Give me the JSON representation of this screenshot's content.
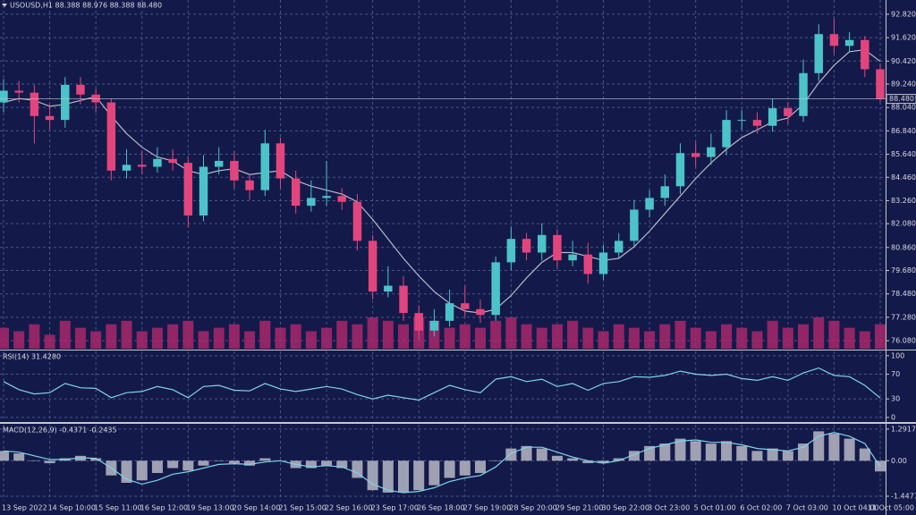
{
  "chart_data": [
    {
      "type": "candlestick",
      "title": "USOUSD,H1  88.388 88.976 88.388 88.480",
      "categories": [
        "13 Sep 2022",
        null,
        null,
        "14 Sep 10:00",
        null,
        null,
        "15 Sep 11:00",
        null,
        null,
        "16 Sep 12:00",
        null,
        null,
        "19 Sep 13:00",
        null,
        null,
        "20 Sep 14:00",
        null,
        null,
        "21 Sep 15:00",
        null,
        null,
        "22 Sep 16:00",
        null,
        null,
        "23 Sep 17:00",
        null,
        null,
        "26 Sep 18:00",
        null,
        null,
        "27 Sep 19:00",
        null,
        null,
        "28 Sep 20:00",
        null,
        null,
        "29 Sep 21:00",
        null,
        null,
        "30 Sep 22:00",
        null,
        null,
        "3 Oct 23:00",
        null,
        null,
        "5 Oct 01:00",
        null,
        null,
        "6 Oct 02:00",
        null,
        null,
        "7 Oct 03:00",
        null,
        null,
        "10 Oct 04:00",
        null,
        null,
        "11 Oct 05:00"
      ],
      "open": [
        88.3,
        88.9,
        88.8,
        87.6,
        87.4,
        89.2,
        88.7,
        88.3,
        84.8,
        85.1,
        85.0,
        85.4,
        85.2,
        82.5,
        85.0,
        85.3,
        84.3,
        83.8,
        86.2,
        84.4,
        83.0,
        83.4,
        83.5,
        83.2,
        81.2,
        78.6,
        78.9,
        77.5,
        76.6,
        77.1,
        78.0,
        77.7,
        77.4,
        80.1,
        81.3,
        80.6,
        81.5,
        80.2,
        80.5,
        79.5,
        80.6,
        81.2,
        82.8,
        83.4,
        84.0,
        85.7,
        85.5,
        86.0,
        87.4,
        87.4,
        87.1,
        88.0,
        87.6,
        89.8,
        91.8,
        91.2,
        91.5,
        90.0
      ],
      "high": [
        89.5,
        89.4,
        89.2,
        88.2,
        89.6,
        89.6,
        89.0,
        88.5,
        85.9,
        85.8,
        86.0,
        85.9,
        85.5,
        85.6,
        86.0,
        85.8,
        84.6,
        86.9,
        86.5,
        84.8,
        84.3,
        85.3,
        83.9,
        83.6,
        81.5,
        79.9,
        79.4,
        77.9,
        77.7,
        78.7,
        78.9,
        78.2,
        80.4,
        81.9,
        81.6,
        82.1,
        81.8,
        81.2,
        81.1,
        81.0,
        81.6,
        83.3,
        83.8,
        84.6,
        86.2,
        86.3,
        86.7,
        87.9,
        87.9,
        87.8,
        88.5,
        88.3,
        90.5,
        92.3,
        92.6,
        91.9,
        91.7,
        90.3
      ],
      "low": [
        87.8,
        88.3,
        86.2,
        86.9,
        87.0,
        88.2,
        87.8,
        84.3,
        84.4,
        84.6,
        84.7,
        84.8,
        81.9,
        82.2,
        84.6,
        83.9,
        83.3,
        83.5,
        83.9,
        82.6,
        82.7,
        83.0,
        82.8,
        80.7,
        78.2,
        78.3,
        77.1,
        76.1,
        76.3,
        76.8,
        77.3,
        77.0,
        77.1,
        79.7,
        80.2,
        80.2,
        79.8,
        79.9,
        79.0,
        79.2,
        80.3,
        80.9,
        82.4,
        83.0,
        83.6,
        85.0,
        85.1,
        85.6,
        86.9,
        86.7,
        86.8,
        87.2,
        87.3,
        89.4,
        90.8,
        90.9,
        89.6,
        88.3
      ],
      "close": [
        88.9,
        88.8,
        87.6,
        87.4,
        89.2,
        88.7,
        88.3,
        84.8,
        85.1,
        85.0,
        85.4,
        85.2,
        82.5,
        85.0,
        85.3,
        84.3,
        83.8,
        86.2,
        84.4,
        83.0,
        83.4,
        83.5,
        83.2,
        81.2,
        78.6,
        78.9,
        77.5,
        76.6,
        77.1,
        78.0,
        77.7,
        77.4,
        80.1,
        81.3,
        80.6,
        81.5,
        80.2,
        80.5,
        79.5,
        80.6,
        81.2,
        82.8,
        83.4,
        84.0,
        85.7,
        85.5,
        86.0,
        87.4,
        87.4,
        87.1,
        88.0,
        87.6,
        89.8,
        91.8,
        91.2,
        91.5,
        90.0,
        88.48
      ],
      "up_color": "#4cc3c9",
      "down_color": "#e2457c",
      "series": [
        {
          "type": "line",
          "color": "#b8b8c4",
          "values": [
            88.3,
            88.5,
            88.4,
            88.1,
            88.2,
            88.4,
            88.6,
            87.6,
            86.7,
            86.0,
            85.5,
            85.3,
            84.8,
            84.6,
            84.8,
            84.9,
            84.6,
            84.7,
            84.8,
            84.3,
            84.0,
            83.8,
            83.6,
            83.2,
            82.3,
            81.3,
            80.3,
            79.4,
            78.6,
            78.0,
            77.6,
            77.5,
            77.7,
            78.4,
            79.3,
            80.1,
            80.6,
            80.6,
            80.4,
            80.2,
            80.3,
            80.9,
            81.7,
            82.6,
            83.5,
            84.4,
            85.2,
            85.9,
            86.5,
            86.9,
            87.3,
            87.5,
            88.2,
            89.3,
            90.2,
            90.9,
            91.0,
            90.4
          ]
        },
        {
          "type": "bar",
          "axis": "y2",
          "color": "#a8286a",
          "values": [
            6,
            5,
            7,
            4,
            8,
            6,
            5,
            7,
            8,
            5,
            6,
            7,
            8,
            5,
            6,
            7,
            5,
            8,
            6,
            7,
            5,
            6,
            8,
            7,
            9,
            8,
            7,
            9,
            8,
            6,
            7,
            6,
            8,
            9,
            7,
            6,
            7,
            8,
            6,
            5,
            7,
            6,
            5,
            7,
            8,
            6,
            5,
            7,
            6,
            5,
            8,
            6,
            7,
            9,
            8,
            6,
            5,
            7
          ]
        }
      ],
      "ylim": [
        75.67,
        93.55
      ],
      "y2lim": [
        0,
        100
      ],
      "yticks": [
        {
          "value": 92.82,
          "label": "92.820"
        },
        {
          "value": 91.62,
          "label": "91.620"
        },
        {
          "value": 90.42,
          "label": "90.420"
        },
        {
          "value": 89.24,
          "label": "89.240"
        },
        {
          "value": 88.04,
          "label": "88.040"
        },
        {
          "value": 86.84,
          "label": "86.840"
        },
        {
          "value": 85.64,
          "label": "85.640"
        },
        {
          "value": 84.46,
          "label": "84.460"
        },
        {
          "value": 83.26,
          "label": "83.260"
        },
        {
          "value": 82.08,
          "label": "82.080"
        },
        {
          "value": 80.86,
          "label": "80.860"
        },
        {
          "value": 79.68,
          "label": "79.680"
        },
        {
          "value": 78.48,
          "label": "78.480"
        },
        {
          "value": 77.28,
          "label": "77.280"
        },
        {
          "value": 76.08,
          "label": "76.080"
        }
      ],
      "last_price": {
        "value": 88.48,
        "label": "88.480"
      },
      "grid": true
    },
    {
      "type": "line",
      "title": "RSI(14) 31.4280",
      "series": [
        {
          "type": "line",
          "color": "#7fd4e6",
          "values": [
            58,
            45,
            38,
            40,
            55,
            48,
            47,
            32,
            40,
            42,
            50,
            45,
            32,
            50,
            52,
            44,
            43,
            55,
            46,
            42,
            46,
            50,
            46,
            37,
            30,
            36,
            32,
            28,
            40,
            52,
            45,
            40,
            62,
            66,
            58,
            62,
            50,
            55,
            44,
            55,
            58,
            66,
            65,
            68,
            75,
            70,
            68,
            70,
            63,
            60,
            66,
            60,
            72,
            80,
            68,
            66,
            52,
            31.428
          ]
        }
      ],
      "ylim": [
        -6,
        107
      ],
      "yticks": [
        100,
        70,
        30,
        0
      ],
      "grid": true
    },
    {
      "type": "combo",
      "title": "MACD(12,26,9) -0.4371 -0.2435",
      "series": [
        {
          "type": "bar",
          "color": "#b8b8c4",
          "values": [
            0.4,
            0.3,
            0.0,
            -0.1,
            0.1,
            0.2,
            0.1,
            -0.6,
            -0.9,
            -0.8,
            -0.5,
            -0.3,
            -0.4,
            -0.2,
            0.0,
            -0.1,
            -0.2,
            0.1,
            0.0,
            -0.3,
            -0.3,
            -0.2,
            -0.3,
            -0.7,
            -1.2,
            -1.3,
            -1.3,
            -1.2,
            -1.0,
            -0.7,
            -0.6,
            -0.5,
            0.0,
            0.5,
            0.6,
            0.5,
            0.2,
            0.1,
            -0.1,
            -0.1,
            0.1,
            0.4,
            0.6,
            0.7,
            0.9,
            0.8,
            0.7,
            0.8,
            0.6,
            0.4,
            0.5,
            0.4,
            0.7,
            1.2,
            1.1,
            0.9,
            0.5,
            -0.4371
          ]
        },
        {
          "type": "line",
          "color": "#7fd4e6",
          "values": [
            0.4,
            0.35,
            0.2,
            0.05,
            0.05,
            0.12,
            0.1,
            -0.3,
            -0.75,
            -0.95,
            -0.8,
            -0.55,
            -0.45,
            -0.3,
            -0.15,
            -0.12,
            -0.15,
            -0.05,
            0.0,
            -0.15,
            -0.25,
            -0.2,
            -0.25,
            -0.5,
            -0.95,
            -1.2,
            -1.3,
            -1.25,
            -1.1,
            -0.85,
            -0.7,
            -0.6,
            -0.25,
            0.3,
            0.55,
            0.55,
            0.35,
            0.15,
            0.0,
            -0.1,
            0.0,
            0.25,
            0.5,
            0.65,
            0.8,
            0.85,
            0.75,
            0.75,
            0.65,
            0.5,
            0.45,
            0.4,
            0.55,
            1.0,
            1.15,
            1.0,
            0.7,
            -0.2435
          ]
        }
      ],
      "ylim": [
        -1.63,
        1.47
      ],
      "yticks": [
        1.2917,
        {
          "value": 0,
          "label": "0.00"
        },
        -1.4477
      ],
      "grid": true
    }
  ]
}
